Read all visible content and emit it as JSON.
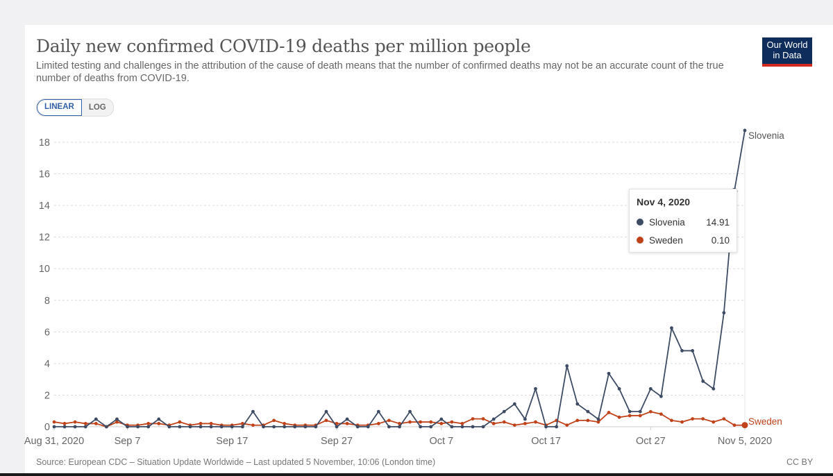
{
  "header": {
    "title": "Daily new confirmed COVID-19 deaths per million people",
    "subtitle": "Limited testing and challenges in the attribution of the cause of death means that the number of confirmed deaths may not be an accurate count of the true number of deaths from COVID-19.",
    "logo_line1": "Our World",
    "logo_line2": "in Data"
  },
  "scale_toggle": {
    "options": [
      "LINEAR",
      "LOG"
    ],
    "selected": "LINEAR"
  },
  "tooltip": {
    "date": "Nov 4, 2020",
    "rows": [
      {
        "name": "Slovenia",
        "value": "14.91",
        "color": "#3d4b63"
      },
      {
        "name": "Sweden",
        "value": "0.10",
        "color": "#c0421a"
      }
    ]
  },
  "footer": {
    "source": "Source: European CDC – Situation Update Worldwide – Last updated 5 November, 10:06 (London time)",
    "license": "CC BY"
  },
  "colors": {
    "slovenia": "#3d4b63",
    "sweden": "#c0421a",
    "logo_bg": "#0f2d5c",
    "logo_accent": "#d42b21",
    "toggle_active": "#3360a9"
  },
  "chart_data": {
    "type": "line",
    "title": "Daily new confirmed COVID-19 deaths per million people",
    "xlabel": "",
    "ylabel": "",
    "x_start": "Aug 31, 2020",
    "x_end": "Nov 5, 2020",
    "x_day_count": 67,
    "xticks": [
      {
        "day": 0,
        "label": "Aug 31, 2020"
      },
      {
        "day": 7,
        "label": "Sep 7"
      },
      {
        "day": 17,
        "label": "Sep 17"
      },
      {
        "day": 27,
        "label": "Sep 27"
      },
      {
        "day": 37,
        "label": "Oct 7"
      },
      {
        "day": 47,
        "label": "Oct 17"
      },
      {
        "day": 57,
        "label": "Oct 27"
      },
      {
        "day": 66,
        "label": "Nov 5, 2020"
      }
    ],
    "yticks": [
      0,
      2,
      4,
      6,
      8,
      10,
      12,
      14,
      16,
      18
    ],
    "ylim": [
      0,
      19
    ],
    "grid": true,
    "legend": "line-end labels (right)",
    "highlight_day": 65,
    "series": [
      {
        "name": "Slovenia",
        "color": "#3d4b63",
        "values": [
          0,
          0,
          0,
          0,
          0.48,
          0,
          0.48,
          0,
          0,
          0,
          0.48,
          0,
          0,
          0,
          0,
          0,
          0,
          0,
          0,
          0.96,
          0,
          0,
          0,
          0,
          0,
          0,
          0.96,
          0,
          0.48,
          0,
          0,
          0.96,
          0,
          0,
          0.96,
          0,
          0,
          0.48,
          0,
          0,
          0,
          0,
          0.48,
          0.96,
          1.44,
          0.48,
          2.4,
          0,
          0,
          3.85,
          1.44,
          0.96,
          0.48,
          3.37,
          2.4,
          0.96,
          0.96,
          2.4,
          1.92,
          6.25,
          4.81,
          4.81,
          2.88,
          2.4,
          7.21,
          14.91,
          18.75
        ]
      },
      {
        "name": "Sweden",
        "color": "#c0421a",
        "values": [
          0.3,
          0.2,
          0.3,
          0.2,
          0.2,
          0,
          0.3,
          0.1,
          0.1,
          0.2,
          0.2,
          0.1,
          0.3,
          0.1,
          0.2,
          0.2,
          0.1,
          0.1,
          0.2,
          0.1,
          0.1,
          0.4,
          0.2,
          0.1,
          0.1,
          0.1,
          0.4,
          0.2,
          0.2,
          0.1,
          0.1,
          0.2,
          0.4,
          0.2,
          0.3,
          0.3,
          0.3,
          0.2,
          0.3,
          0.2,
          0.5,
          0.5,
          0.2,
          0.3,
          0.1,
          0.2,
          0.3,
          0.1,
          0.4,
          0.1,
          0.4,
          0.4,
          0.3,
          0.9,
          0.6,
          0.7,
          0.7,
          0.95,
          0.8,
          0.4,
          0.3,
          0.5,
          0.5,
          0.3,
          0.5,
          0.1,
          0.1
        ]
      }
    ],
    "end_labels": [
      "Slovenia",
      "Sweden"
    ]
  }
}
